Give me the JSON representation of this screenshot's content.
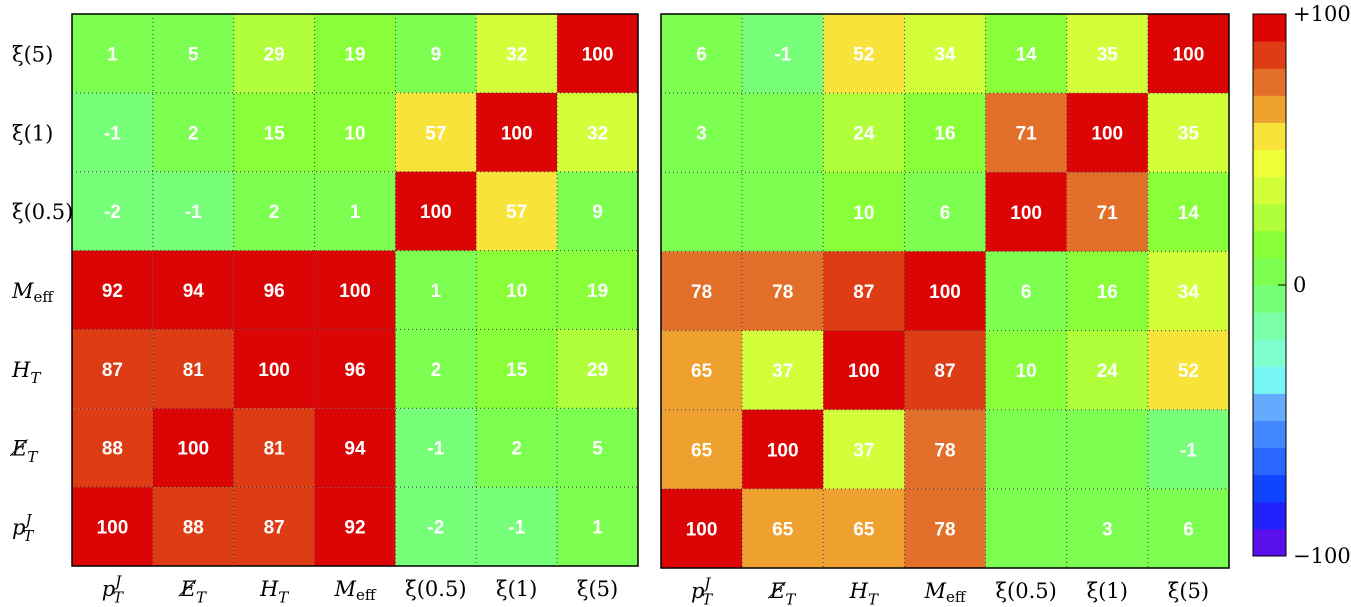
{
  "chart_data": [
    {
      "type": "heatmap",
      "rows_top_to_bottom": [
        "ξ(5)",
        "ξ(1)",
        "ξ(0.5)",
        "M_eff",
        "H_T",
        "E̸_T",
        "p_T^J"
      ],
      "columns": [
        "p_T^J",
        "E̸_T",
        "H_T",
        "M_eff",
        "ξ(0.5)",
        "ξ(1)",
        "ξ(5)"
      ],
      "values": [
        [
          1,
          5,
          29,
          19,
          9,
          32,
          100
        ],
        [
          -1,
          2,
          15,
          10,
          57,
          100,
          32
        ],
        [
          -2,
          -1,
          2,
          1,
          100,
          57,
          9
        ],
        [
          92,
          94,
          96,
          100,
          1,
          10,
          19
        ],
        [
          87,
          81,
          100,
          96,
          2,
          15,
          29
        ],
        [
          88,
          100,
          81,
          94,
          -1,
          2,
          5
        ],
        [
          100,
          88,
          87,
          92,
          -2,
          -1,
          1
        ]
      ],
      "zlim": [
        -100,
        100
      ],
      "grid": true
    },
    {
      "type": "heatmap",
      "rows_top_to_bottom": [
        "ξ(5)",
        "ξ(1)",
        "ξ(0.5)",
        "M_eff",
        "H_T",
        "E̸_T",
        "p_T^J"
      ],
      "columns": [
        "p_T^J",
        "E̸_T",
        "H_T",
        "M_eff",
        "ξ(0.5)",
        "ξ(1)",
        "ξ(5)"
      ],
      "values": [
        [
          6,
          -1,
          52,
          34,
          14,
          35,
          100
        ],
        [
          3,
          0,
          24,
          16,
          71,
          100,
          35
        ],
        [
          0,
          0,
          10,
          6,
          100,
          71,
          14
        ],
        [
          78,
          78,
          87,
          100,
          6,
          16,
          34
        ],
        [
          65,
          37,
          100,
          87,
          10,
          24,
          52
        ],
        [
          65,
          100,
          37,
          78,
          0,
          0,
          -1
        ],
        [
          100,
          65,
          65,
          78,
          0,
          3,
          6
        ]
      ],
      "zlim": [
        -100,
        100
      ],
      "grid": true
    }
  ],
  "colorbar": {
    "ticks": [
      "+100",
      "0",
      "−100"
    ],
    "colors": [
      "#5a10ea",
      "#2222ff",
      "#1144ff",
      "#2a66ff",
      "#4488ff",
      "#66aaff",
      "#77f5f2",
      "#7effd0",
      "#7bffa8",
      "#77ff7a",
      "#7cff50",
      "#88ff38",
      "#b0ff3a",
      "#d2ff3a",
      "#ecff38",
      "#f7e33a",
      "#eea12f",
      "#e2702a",
      "#dd3c14",
      "#dc0505"
    ]
  }
}
